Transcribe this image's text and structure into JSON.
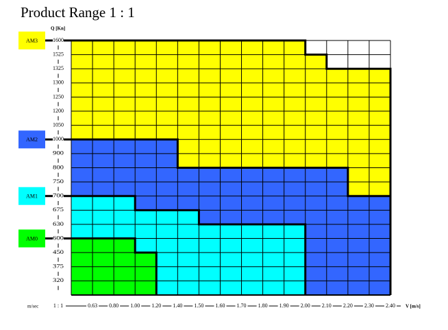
{
  "chart_data": {
    "type": "step-envelope",
    "title": "Product Range 1 : 1",
    "y_label": "Q [Kn]",
    "x_label": "V [m/s]",
    "x_unit": "m/sec",
    "x_origin_label": "1 : 1",
    "categories": [
      "0.63",
      "0.80",
      "1.00",
      "1.20",
      "1.40",
      "1.50",
      "1.60",
      "1.70",
      "1.80",
      "1.90",
      "2.00",
      "2.10",
      "2.20",
      "2.30",
      "2.40"
    ],
    "yticks": [
      1600,
      1525,
      1325,
      1300,
      1250,
      1200,
      1050,
      1000,
      900,
      800,
      750,
      700,
      675,
      630,
      600,
      450,
      375,
      320
    ],
    "grid": true,
    "series": [
      {
        "name": "AM3",
        "color": "#ffff00",
        "x": [
          2.0,
          2.1,
          2.4
        ],
        "values": [
          1600,
          1525,
          1325
        ]
      },
      {
        "name": "AM2",
        "color": "#3366ff",
        "x": [
          1.4,
          2.2,
          2.4
        ],
        "values": [
          1000,
          800,
          700
        ]
      },
      {
        "name": "AM1",
        "color": "#00ffff",
        "x": [
          1.0,
          1.5,
          2.0
        ],
        "values": [
          700,
          675,
          630
        ]
      },
      {
        "name": "AM0",
        "color": "#00ff00",
        "x": [
          1.0,
          1.2
        ],
        "values": [
          600,
          450
        ]
      }
    ]
  }
}
